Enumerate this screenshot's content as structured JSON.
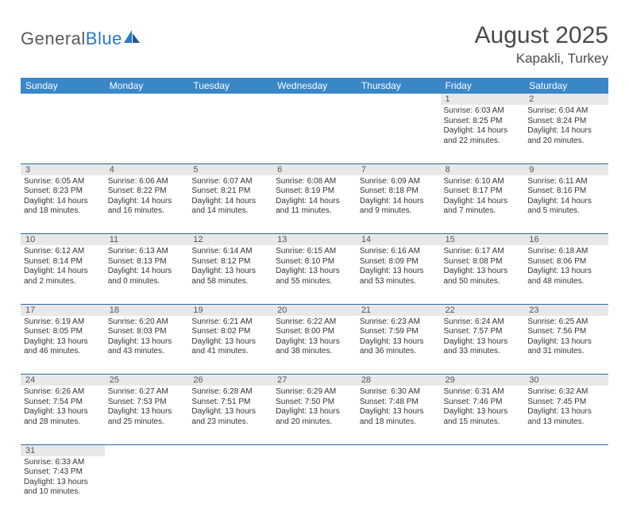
{
  "brand": {
    "general": "General",
    "blue": "Blue"
  },
  "title": "August 2025",
  "location": "Kapakli, Turkey",
  "colors": {
    "header_bg": "#3a87c8",
    "header_text": "#ffffff",
    "daynum_bg": "#e8e8e8",
    "row_divider": "#2a6aa8",
    "text": "#333333",
    "logo_gray": "#5a5a5a",
    "logo_blue": "#2a78c2"
  },
  "weekdays": [
    "Sunday",
    "Monday",
    "Tuesday",
    "Wednesday",
    "Thursday",
    "Friday",
    "Saturday"
  ],
  "weeks": [
    [
      null,
      null,
      null,
      null,
      null,
      {
        "n": "1",
        "sr": "Sunrise: 6:03 AM",
        "ss": "Sunset: 8:25 PM",
        "d1": "Daylight: 14 hours",
        "d2": "and 22 minutes."
      },
      {
        "n": "2",
        "sr": "Sunrise: 6:04 AM",
        "ss": "Sunset: 8:24 PM",
        "d1": "Daylight: 14 hours",
        "d2": "and 20 minutes."
      }
    ],
    [
      {
        "n": "3",
        "sr": "Sunrise: 6:05 AM",
        "ss": "Sunset: 8:23 PM",
        "d1": "Daylight: 14 hours",
        "d2": "and 18 minutes."
      },
      {
        "n": "4",
        "sr": "Sunrise: 6:06 AM",
        "ss": "Sunset: 8:22 PM",
        "d1": "Daylight: 14 hours",
        "d2": "and 16 minutes."
      },
      {
        "n": "5",
        "sr": "Sunrise: 6:07 AM",
        "ss": "Sunset: 8:21 PM",
        "d1": "Daylight: 14 hours",
        "d2": "and 14 minutes."
      },
      {
        "n": "6",
        "sr": "Sunrise: 6:08 AM",
        "ss": "Sunset: 8:19 PM",
        "d1": "Daylight: 14 hours",
        "d2": "and 11 minutes."
      },
      {
        "n": "7",
        "sr": "Sunrise: 6:09 AM",
        "ss": "Sunset: 8:18 PM",
        "d1": "Daylight: 14 hours",
        "d2": "and 9 minutes."
      },
      {
        "n": "8",
        "sr": "Sunrise: 6:10 AM",
        "ss": "Sunset: 8:17 PM",
        "d1": "Daylight: 14 hours",
        "d2": "and 7 minutes."
      },
      {
        "n": "9",
        "sr": "Sunrise: 6:11 AM",
        "ss": "Sunset: 8:16 PM",
        "d1": "Daylight: 14 hours",
        "d2": "and 5 minutes."
      }
    ],
    [
      {
        "n": "10",
        "sr": "Sunrise: 6:12 AM",
        "ss": "Sunset: 8:14 PM",
        "d1": "Daylight: 14 hours",
        "d2": "and 2 minutes."
      },
      {
        "n": "11",
        "sr": "Sunrise: 6:13 AM",
        "ss": "Sunset: 8:13 PM",
        "d1": "Daylight: 14 hours",
        "d2": "and 0 minutes."
      },
      {
        "n": "12",
        "sr": "Sunrise: 6:14 AM",
        "ss": "Sunset: 8:12 PM",
        "d1": "Daylight: 13 hours",
        "d2": "and 58 minutes."
      },
      {
        "n": "13",
        "sr": "Sunrise: 6:15 AM",
        "ss": "Sunset: 8:10 PM",
        "d1": "Daylight: 13 hours",
        "d2": "and 55 minutes."
      },
      {
        "n": "14",
        "sr": "Sunrise: 6:16 AM",
        "ss": "Sunset: 8:09 PM",
        "d1": "Daylight: 13 hours",
        "d2": "and 53 minutes."
      },
      {
        "n": "15",
        "sr": "Sunrise: 6:17 AM",
        "ss": "Sunset: 8:08 PM",
        "d1": "Daylight: 13 hours",
        "d2": "and 50 minutes."
      },
      {
        "n": "16",
        "sr": "Sunrise: 6:18 AM",
        "ss": "Sunset: 8:06 PM",
        "d1": "Daylight: 13 hours",
        "d2": "and 48 minutes."
      }
    ],
    [
      {
        "n": "17",
        "sr": "Sunrise: 6:19 AM",
        "ss": "Sunset: 8:05 PM",
        "d1": "Daylight: 13 hours",
        "d2": "and 46 minutes."
      },
      {
        "n": "18",
        "sr": "Sunrise: 6:20 AM",
        "ss": "Sunset: 8:03 PM",
        "d1": "Daylight: 13 hours",
        "d2": "and 43 minutes."
      },
      {
        "n": "19",
        "sr": "Sunrise: 6:21 AM",
        "ss": "Sunset: 8:02 PM",
        "d1": "Daylight: 13 hours",
        "d2": "and 41 minutes."
      },
      {
        "n": "20",
        "sr": "Sunrise: 6:22 AM",
        "ss": "Sunset: 8:00 PM",
        "d1": "Daylight: 13 hours",
        "d2": "and 38 minutes."
      },
      {
        "n": "21",
        "sr": "Sunrise: 6:23 AM",
        "ss": "Sunset: 7:59 PM",
        "d1": "Daylight: 13 hours",
        "d2": "and 36 minutes."
      },
      {
        "n": "22",
        "sr": "Sunrise: 6:24 AM",
        "ss": "Sunset: 7:57 PM",
        "d1": "Daylight: 13 hours",
        "d2": "and 33 minutes."
      },
      {
        "n": "23",
        "sr": "Sunrise: 6:25 AM",
        "ss": "Sunset: 7:56 PM",
        "d1": "Daylight: 13 hours",
        "d2": "and 31 minutes."
      }
    ],
    [
      {
        "n": "24",
        "sr": "Sunrise: 6:26 AM",
        "ss": "Sunset: 7:54 PM",
        "d1": "Daylight: 13 hours",
        "d2": "and 28 minutes."
      },
      {
        "n": "25",
        "sr": "Sunrise: 6:27 AM",
        "ss": "Sunset: 7:53 PM",
        "d1": "Daylight: 13 hours",
        "d2": "and 25 minutes."
      },
      {
        "n": "26",
        "sr": "Sunrise: 6:28 AM",
        "ss": "Sunset: 7:51 PM",
        "d1": "Daylight: 13 hours",
        "d2": "and 23 minutes."
      },
      {
        "n": "27",
        "sr": "Sunrise: 6:29 AM",
        "ss": "Sunset: 7:50 PM",
        "d1": "Daylight: 13 hours",
        "d2": "and 20 minutes."
      },
      {
        "n": "28",
        "sr": "Sunrise: 6:30 AM",
        "ss": "Sunset: 7:48 PM",
        "d1": "Daylight: 13 hours",
        "d2": "and 18 minutes."
      },
      {
        "n": "29",
        "sr": "Sunrise: 6:31 AM",
        "ss": "Sunset: 7:46 PM",
        "d1": "Daylight: 13 hours",
        "d2": "and 15 minutes."
      },
      {
        "n": "30",
        "sr": "Sunrise: 6:32 AM",
        "ss": "Sunset: 7:45 PM",
        "d1": "Daylight: 13 hours",
        "d2": "and 13 minutes."
      }
    ],
    [
      {
        "n": "31",
        "sr": "Sunrise: 6:33 AM",
        "ss": "Sunset: 7:43 PM",
        "d1": "Daylight: 13 hours",
        "d2": "and 10 minutes."
      },
      null,
      null,
      null,
      null,
      null,
      null
    ]
  ]
}
